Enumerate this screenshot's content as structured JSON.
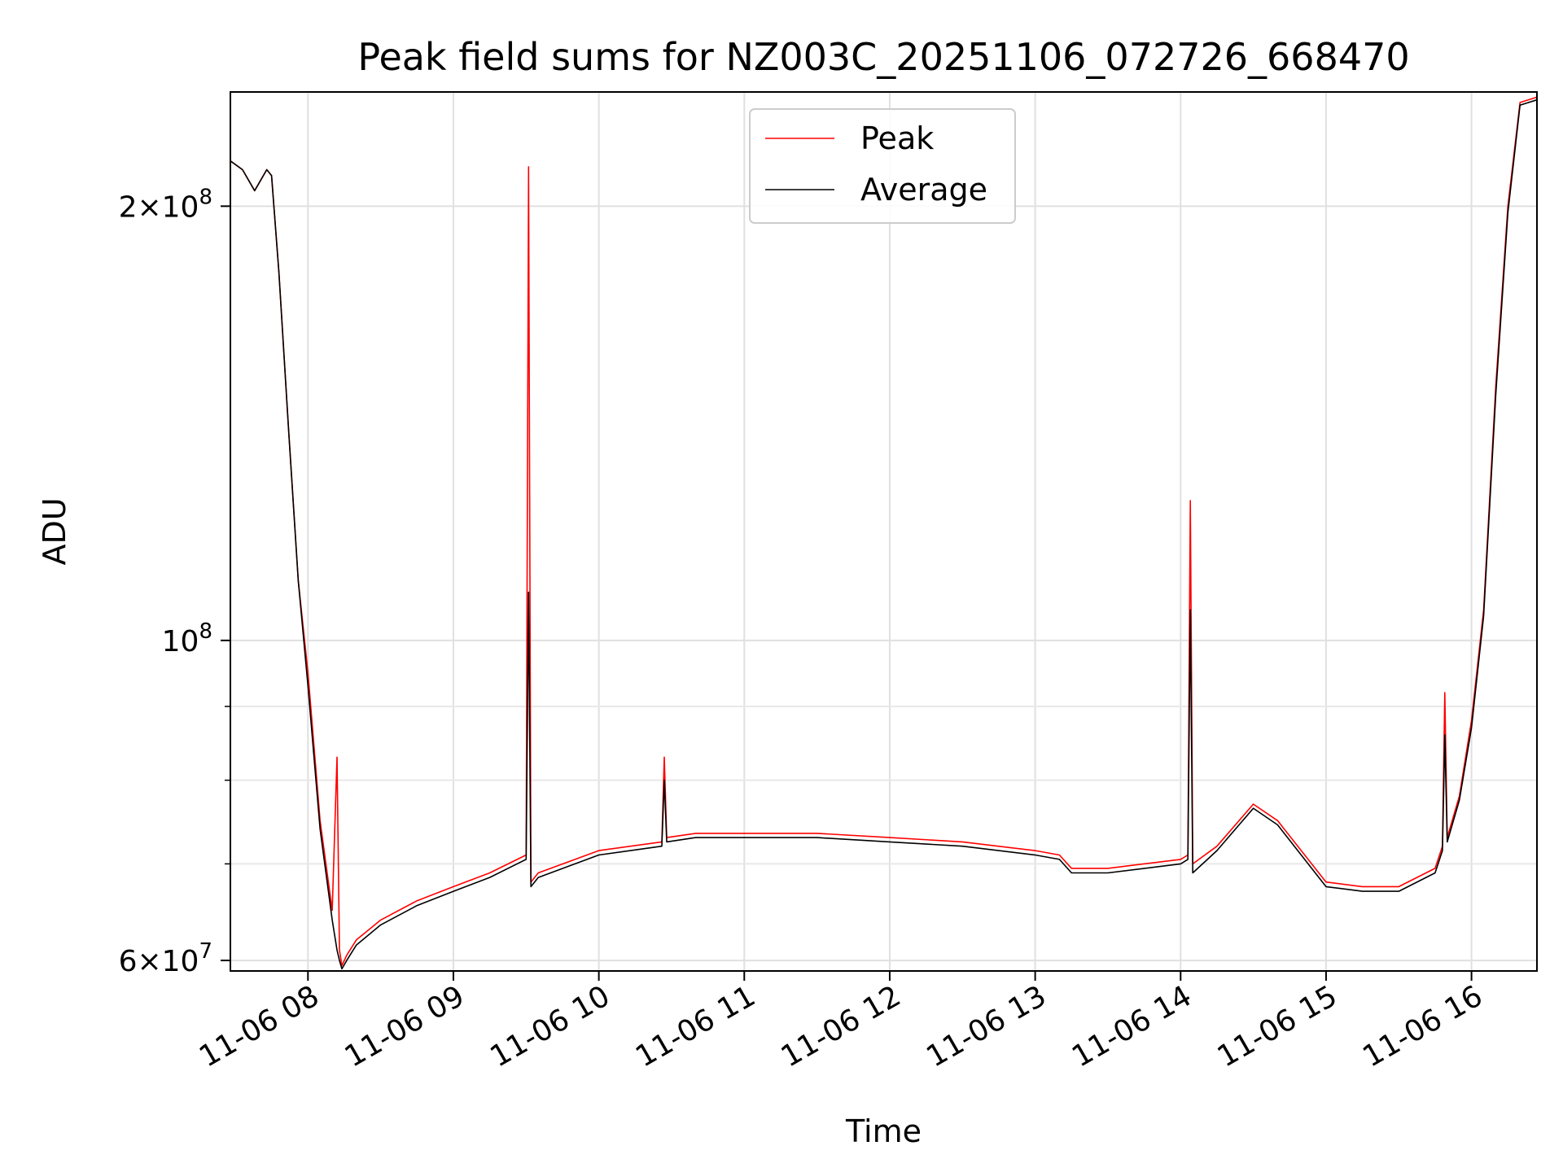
{
  "chart_data": {
    "type": "line",
    "title": "Peak field sums for NZ003C_20251106_072726_668470",
    "xlabel": "Time",
    "ylabel": "ADU",
    "yscale": "log",
    "ylim": [
      59000000,
      240000000
    ],
    "xlim": [
      "2025-11-06 07:28",
      "2025-11-06 16:27"
    ],
    "grid": true,
    "legend_position": "upper center",
    "x_tick_labels": [
      "11-06 08",
      "11-06 09",
      "11-06 10",
      "11-06 11",
      "11-06 12",
      "11-06 13",
      "11-06 14",
      "11-06 15",
      "11-06 16"
    ],
    "x_tick_times": [
      "2025-11-06 08:00",
      "2025-11-06 09:00",
      "2025-11-06 10:00",
      "2025-11-06 11:00",
      "2025-11-06 12:00",
      "2025-11-06 13:00",
      "2025-11-06 14:00",
      "2025-11-06 15:00",
      "2025-11-06 16:00"
    ],
    "y_major_ticks": [
      {
        "value": 60000000,
        "mantissa": "6",
        "exponent": "7"
      },
      {
        "value": 100000000,
        "mantissa": "",
        "exponent": "8"
      },
      {
        "value": 200000000,
        "mantissa": "2",
        "exponent": "8"
      }
    ],
    "y_minor_ticks": [
      70000000,
      80000000,
      90000000
    ],
    "series": [
      {
        "name": "Peak",
        "color": "#ff0000",
        "x": [
          "2025-11-06 07:28",
          "2025-11-06 07:33",
          "2025-11-06 07:38",
          "2025-11-06 07:43",
          "2025-11-06 07:45",
          "2025-11-06 07:48",
          "2025-11-06 07:52",
          "2025-11-06 07:56",
          "2025-11-06 08:00",
          "2025-11-06 08:05",
          "2025-11-06 08:10",
          "2025-11-06 08:12",
          "2025-11-06 08:13",
          "2025-11-06 08:14",
          "2025-11-06 08:16",
          "2025-11-06 08:20",
          "2025-11-06 08:30",
          "2025-11-06 08:45",
          "2025-11-06 09:00",
          "2025-11-06 09:15",
          "2025-11-06 09:30",
          "2025-11-06 09:31",
          "2025-11-06 09:32",
          "2025-11-06 09:35",
          "2025-11-06 10:00",
          "2025-11-06 10:26",
          "2025-11-06 10:27",
          "2025-11-06 10:28",
          "2025-11-06 10:40",
          "2025-11-06 11:00",
          "2025-11-06 11:30",
          "2025-11-06 12:00",
          "2025-11-06 12:30",
          "2025-11-06 13:00",
          "2025-11-06 13:10",
          "2025-11-06 13:15",
          "2025-11-06 13:30",
          "2025-11-06 14:00",
          "2025-11-06 14:03",
          "2025-11-06 14:04",
          "2025-11-06 14:05",
          "2025-11-06 14:15",
          "2025-11-06 14:30",
          "2025-11-06 14:40",
          "2025-11-06 15:00",
          "2025-11-06 15:15",
          "2025-11-06 15:30",
          "2025-11-06 15:45",
          "2025-11-06 15:48",
          "2025-11-06 15:49",
          "2025-11-06 15:50",
          "2025-11-06 15:55",
          "2025-11-06 16:00",
          "2025-11-06 16:05",
          "2025-11-06 16:10",
          "2025-11-06 16:15",
          "2025-11-06 16:20",
          "2025-11-06 16:27"
        ],
        "y": [
          215000000,
          212000000,
          205000000,
          212000000,
          210000000,
          180000000,
          140000000,
          110000000,
          95000000,
          75000000,
          65000000,
          83000000,
          61000000,
          59500000,
          60500000,
          62000000,
          64000000,
          66000000,
          67500000,
          69000000,
          71000000,
          213000000,
          68000000,
          69000000,
          71500000,
          72500000,
          83000000,
          73000000,
          73500000,
          73500000,
          73500000,
          73000000,
          72500000,
          71500000,
          71000000,
          69500000,
          69500000,
          70500000,
          71000000,
          125000000,
          70000000,
          72000000,
          77000000,
          75000000,
          68000000,
          67500000,
          67500000,
          69500000,
          72000000,
          92000000,
          73000000,
          78000000,
          88000000,
          105000000,
          150000000,
          200000000,
          236000000,
          238000000
        ]
      },
      {
        "name": "Average",
        "color": "#000000",
        "x": [
          "2025-11-06 07:28",
          "2025-11-06 07:33",
          "2025-11-06 07:38",
          "2025-11-06 07:43",
          "2025-11-06 07:45",
          "2025-11-06 07:48",
          "2025-11-06 07:52",
          "2025-11-06 07:56",
          "2025-11-06 08:00",
          "2025-11-06 08:05",
          "2025-11-06 08:10",
          "2025-11-06 08:12",
          "2025-11-06 08:13",
          "2025-11-06 08:14",
          "2025-11-06 08:16",
          "2025-11-06 08:20",
          "2025-11-06 08:30",
          "2025-11-06 08:45",
          "2025-11-06 09:00",
          "2025-11-06 09:15",
          "2025-11-06 09:30",
          "2025-11-06 09:31",
          "2025-11-06 09:32",
          "2025-11-06 09:35",
          "2025-11-06 10:00",
          "2025-11-06 10:26",
          "2025-11-06 10:27",
          "2025-11-06 10:28",
          "2025-11-06 10:40",
          "2025-11-06 11:00",
          "2025-11-06 11:30",
          "2025-11-06 12:00",
          "2025-11-06 12:30",
          "2025-11-06 13:00",
          "2025-11-06 13:10",
          "2025-11-06 13:15",
          "2025-11-06 13:30",
          "2025-11-06 14:00",
          "2025-11-06 14:03",
          "2025-11-06 14:04",
          "2025-11-06 14:05",
          "2025-11-06 14:15",
          "2025-11-06 14:30",
          "2025-11-06 14:40",
          "2025-11-06 15:00",
          "2025-11-06 15:15",
          "2025-11-06 15:30",
          "2025-11-06 15:45",
          "2025-11-06 15:48",
          "2025-11-06 15:49",
          "2025-11-06 15:50",
          "2025-11-06 15:55",
          "2025-11-06 16:00",
          "2025-11-06 16:05",
          "2025-11-06 16:10",
          "2025-11-06 16:15",
          "2025-11-06 16:20",
          "2025-11-06 16:27"
        ],
        "y": [
          215000000,
          212000000,
          205000000,
          212000000,
          210000000,
          180000000,
          140000000,
          110000000,
          93000000,
          74000000,
          64000000,
          61000000,
          60000000,
          59200000,
          60000000,
          61500000,
          63500000,
          65500000,
          67000000,
          68500000,
          70500000,
          108000000,
          67500000,
          68500000,
          71000000,
          72000000,
          80000000,
          72500000,
          73000000,
          73000000,
          73000000,
          72500000,
          72000000,
          71000000,
          70500000,
          69000000,
          69000000,
          70000000,
          70500000,
          105000000,
          69000000,
          71500000,
          76500000,
          74500000,
          67500000,
          67000000,
          67000000,
          69000000,
          71500000,
          86000000,
          72500000,
          77500000,
          87000000,
          104000000,
          148000000,
          198000000,
          235000000,
          237000000
        ]
      }
    ]
  }
}
